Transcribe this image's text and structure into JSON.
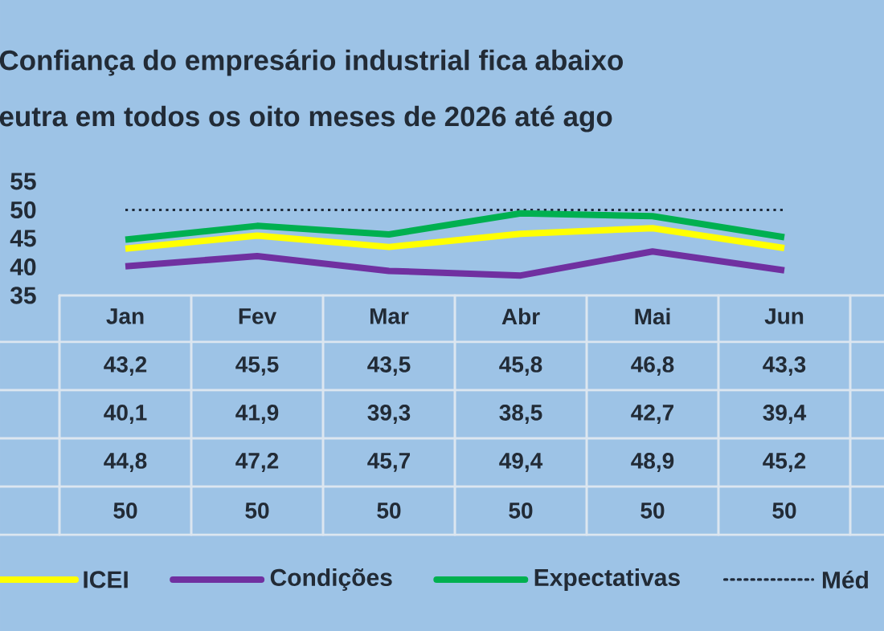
{
  "chart_data": {
    "type": "line",
    "title": "Confiança do empresário industrial fica abaixo",
    "subtitle": "eutra em todos os oito meses de 2026 até ago",
    "categories": [
      "Jan",
      "Fev",
      "Mar",
      "Abr",
      "Mai",
      "Jun"
    ],
    "series": [
      {
        "name": "ICEI",
        "color": "#ffff00",
        "values": [
          43.2,
          45.5,
          43.5,
          45.8,
          46.8,
          43.3
        ],
        "value_labels": [
          "43,2",
          "45,5",
          "43,5",
          "45,8",
          "46,8",
          "43,3"
        ]
      },
      {
        "name": "Condições",
        "color": "#7030a0",
        "values": [
          40.1,
          41.9,
          39.3,
          38.5,
          42.7,
          39.4
        ],
        "value_labels": [
          "40,1",
          "41,9",
          "39,3",
          "38,5",
          "42,7",
          "39,4"
        ]
      },
      {
        "name": "Expectativas",
        "color": "#00b050",
        "values": [
          44.8,
          47.2,
          45.7,
          49.4,
          48.9,
          45.2
        ],
        "value_labels": [
          "44,8",
          "47,2",
          "45,7",
          "49,4",
          "48,9",
          "45,2"
        ]
      },
      {
        "name": "Méd",
        "color": "#1f2a3a",
        "line_style": "dotted",
        "values": [
          50,
          50,
          50,
          50,
          50,
          50
        ],
        "value_labels": [
          "50",
          "50",
          "50",
          "50",
          "50",
          "50"
        ]
      }
    ],
    "ylim": [
      35,
      55
    ],
    "yticks": [
      35,
      40,
      45,
      50,
      55
    ],
    "legend": "bottom",
    "marker": "none"
  }
}
